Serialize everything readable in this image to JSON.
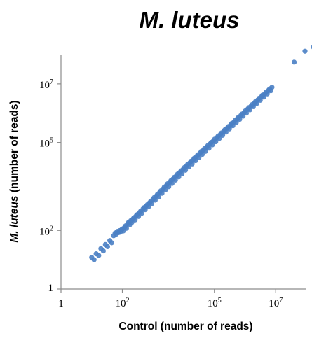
{
  "chart_data": {
    "type": "scatter",
    "title": "M. luteus",
    "xlabel": "Control (number of reads)",
    "ylabel_italic": "M. luteus",
    "ylabel_rest": " (number of reads)",
    "x_scale": "log",
    "y_scale": "log",
    "xlim": [
      1,
      100000000
    ],
    "ylim": [
      1,
      100000000
    ],
    "x_ticks": [
      {
        "value": 1,
        "base": "1",
        "exp": ""
      },
      {
        "value": 100,
        "base": "10",
        "exp": "2"
      },
      {
        "value": 100000,
        "base": "10",
        "exp": "5"
      },
      {
        "value": 10000000,
        "base": "10",
        "exp": "7"
      }
    ],
    "y_ticks": [
      {
        "value": 1,
        "base": "1",
        "exp": ""
      },
      {
        "value": 100,
        "base": "10",
        "exp": "2"
      },
      {
        "value": 100000,
        "base": "10",
        "exp": "5"
      },
      {
        "value": 10000000,
        "base": "10",
        "exp": "7"
      }
    ],
    "grid": false,
    "marker_color": "#4a7fc4",
    "points": [
      [
        52,
        66
      ],
      [
        58,
        81
      ],
      [
        63,
        74
      ],
      [
        68,
        92
      ],
      [
        74,
        83
      ],
      [
        80,
        98
      ],
      [
        86,
        87
      ],
      [
        93,
        105
      ],
      [
        100,
        112
      ],
      [
        108,
        96
      ],
      [
        117,
        126
      ],
      [
        126,
        142
      ],
      [
        136,
        118
      ],
      [
        148,
        168
      ],
      [
        160,
        190
      ],
      [
        173,
        154
      ],
      [
        188,
        215
      ],
      [
        205,
        188
      ],
      [
        222,
        246
      ],
      [
        240,
        275
      ],
      [
        262,
        228
      ],
      [
        285,
        320
      ],
      [
        310,
        350
      ],
      [
        336,
        300
      ],
      [
        365,
        410
      ],
      [
        397,
        455
      ],
      [
        430,
        385
      ],
      [
        470,
        540
      ],
      [
        510,
        600
      ],
      [
        555,
        510
      ],
      [
        604,
        690
      ],
      [
        656,
        760
      ],
      [
        713,
        640
      ],
      [
        775,
        880
      ],
      [
        842,
        1000
      ],
      [
        915,
        820
      ],
      [
        1000,
        1150
      ],
      [
        1090,
        1320
      ],
      [
        1180,
        1080
      ],
      [
        1290,
        1500
      ],
      [
        1400,
        1700
      ],
      [
        1520,
        1380
      ],
      [
        1650,
        2000
      ],
      [
        1800,
        2250
      ],
      [
        1960,
        1850
      ],
      [
        2130,
        2600
      ],
      [
        2320,
        3000
      ],
      [
        2520,
        2400
      ],
      [
        2740,
        3400
      ],
      [
        2980,
        3900
      ],
      [
        3250,
        3100
      ],
      [
        3530,
        4400
      ],
      [
        3840,
        5000
      ],
      [
        4170,
        4000
      ],
      [
        4540,
        5700
      ],
      [
        4940,
        6500
      ],
      [
        5370,
        5200
      ],
      [
        5840,
        7400
      ],
      [
        6350,
        8400
      ],
      [
        6900,
        6700
      ],
      [
        7500,
        9500
      ],
      [
        8160,
        10800
      ],
      [
        8870,
        8700
      ],
      [
        9650,
        12300
      ],
      [
        10500,
        14000
      ],
      [
        11400,
        11300
      ],
      [
        12400,
        15800
      ],
      [
        13500,
        18000
      ],
      [
        14700,
        14500
      ],
      [
        16000,
        20500
      ],
      [
        17400,
        23000
      ],
      [
        18900,
        18500
      ],
      [
        20600,
        26000
      ],
      [
        22400,
        29500
      ],
      [
        24400,
        24000
      ],
      [
        26500,
        33500
      ],
      [
        28800,
        38000
      ],
      [
        31400,
        30500
      ],
      [
        34100,
        43000
      ],
      [
        37100,
        49000
      ],
      [
        40400,
        39500
      ],
      [
        43900,
        55000
      ],
      [
        47800,
        62000
      ],
      [
        52000,
        50000
      ],
      [
        56600,
        70000
      ],
      [
        61600,
        79000
      ],
      [
        67000,
        64000
      ],
      [
        72900,
        90000
      ],
      [
        79300,
        101000
      ],
      [
        86300,
        83000
      ],
      [
        93900,
        115000
      ],
      [
        102000,
        130000
      ],
      [
        111000,
        106000
      ],
      [
        121000,
        147000
      ],
      [
        132000,
        166000
      ],
      [
        144000,
        137000
      ],
      [
        157000,
        188000
      ],
      [
        171000,
        212000
      ],
      [
        186000,
        176000
      ],
      [
        202000,
        240000
      ],
      [
        220000,
        272000
      ],
      [
        240000,
        226000
      ],
      [
        262000,
        308000
      ],
      [
        285000,
        348000
      ],
      [
        310000,
        290000
      ],
      [
        338000,
        394000
      ],
      [
        368000,
        446000
      ],
      [
        401000,
        373000
      ],
      [
        437000,
        505000
      ],
      [
        476000,
        571000
      ],
      [
        518000,
        479000
      ],
      [
        564000,
        646000
      ],
      [
        614000,
        731000
      ],
      [
        668000,
        615000
      ],
      [
        727000,
        827000
      ],
      [
        792000,
        936000
      ],
      [
        862000,
        790000
      ],
      [
        938000,
        1060000
      ],
      [
        1020000,
        1200000
      ],
      [
        1110000,
        1010000
      ],
      [
        1210000,
        1360000
      ],
      [
        1320000,
        1540000
      ],
      [
        1440000,
        1300000
      ],
      [
        1570000,
        1740000
      ],
      [
        1710000,
        1970000
      ],
      [
        1860000,
        1670000
      ],
      [
        2030000,
        2230000
      ],
      [
        2210000,
        2520000
      ],
      [
        2410000,
        2140000
      ],
      [
        2630000,
        2850000
      ],
      [
        2870000,
        3220000
      ],
      [
        3130000,
        2750000
      ],
      [
        3420000,
        3650000
      ],
      [
        3730000,
        4130000
      ],
      [
        4070000,
        3530000
      ],
      [
        4450000,
        4670000
      ],
      [
        4860000,
        5280000
      ],
      [
        5300000,
        4540000
      ],
      [
        5790000,
        5980000
      ],
      [
        6330000,
        6770000
      ],
      [
        6910000,
        5840000
      ],
      [
        7550000,
        7650000
      ],
      [
        10,
        12
      ],
      [
        12,
        10
      ],
      [
        14,
        16
      ],
      [
        17,
        14
      ],
      [
        20,
        24
      ],
      [
        24,
        20
      ],
      [
        28,
        33
      ],
      [
        33,
        28
      ],
      [
        39,
        45
      ],
      [
        45,
        38
      ],
      [
        90000000,
        130000000
      ],
      [
        40000000,
        55000000
      ],
      [
        170000000,
        180000000
      ]
    ]
  }
}
